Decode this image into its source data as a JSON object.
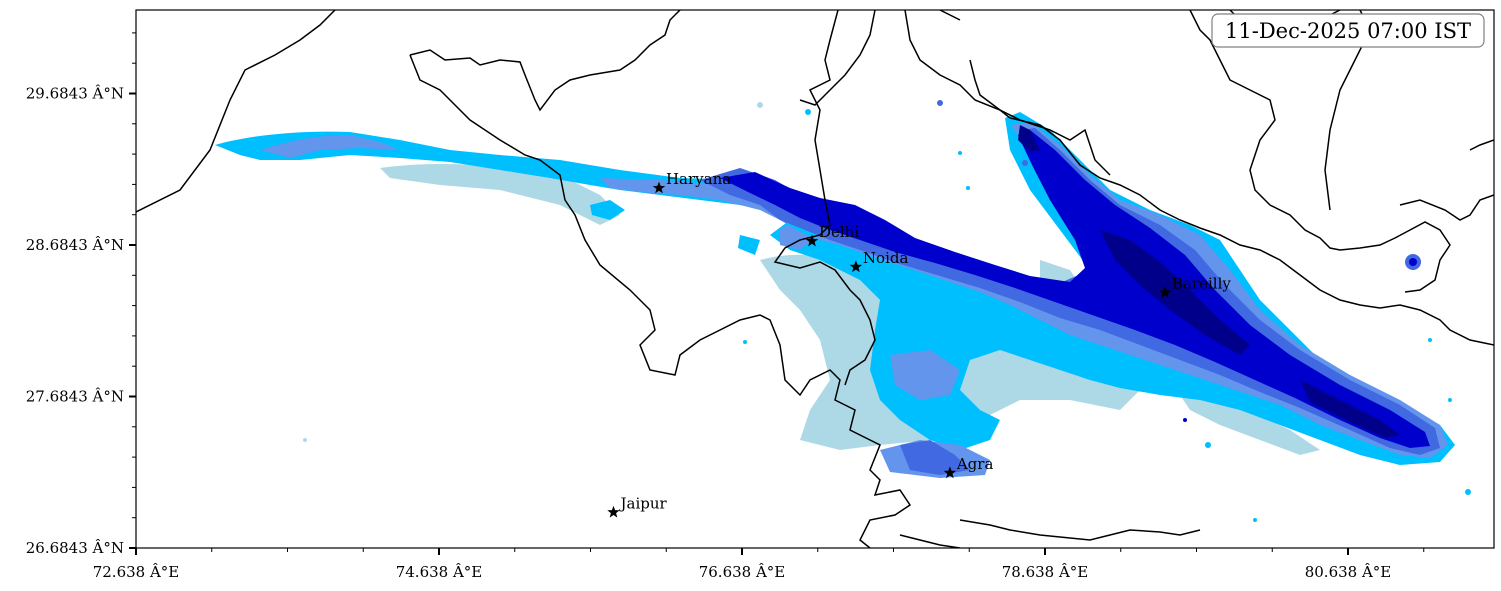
{
  "timestamp": "11-Dec-2025 07:00 IST",
  "axes": {
    "x_ticks": [
      "72.638 Â°E",
      "74.638 Â°E",
      "76.638 Â°E",
      "78.638 Â°E",
      "80.638 Â°E"
    ],
    "y_ticks": [
      "29.6843 Â°N",
      "28.6843 Â°N",
      "27.6843 Â°N",
      "26.6843 Â°N"
    ],
    "x_range": [
      72.638,
      81.66
    ],
    "y_range": [
      26.6843,
      30.24
    ]
  },
  "cities": [
    {
      "name": "Haryana",
      "lon": 76.09,
      "lat": 29.06
    },
    {
      "name": "Delhi",
      "lon": 77.1,
      "lat": 28.71
    },
    {
      "name": "Noida",
      "lon": 77.39,
      "lat": 28.54
    },
    {
      "name": "Bareilly",
      "lon": 79.43,
      "lat": 28.37
    },
    {
      "name": "Agra",
      "lon": 78.01,
      "lat": 27.18
    },
    {
      "name": "Jaipur",
      "lon": 75.79,
      "lat": 26.92
    }
  ],
  "colors": {
    "precip_light": "#add8e6",
    "precip_low": "#00bfff",
    "precip_mid": "#6495ed",
    "precip_high": "#4169e1",
    "precip_very_high": "#0000cd",
    "precip_max": "#00008b",
    "border": "#000000"
  }
}
